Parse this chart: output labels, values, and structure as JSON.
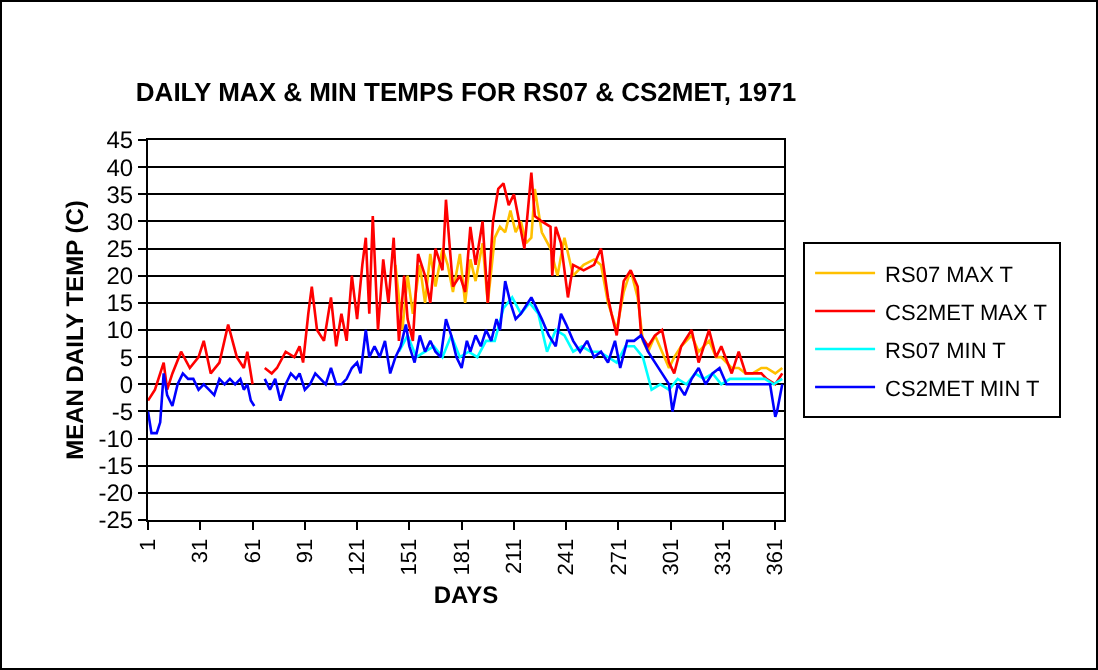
{
  "chart_data": {
    "type": "line",
    "title": "DAILY MAX & MIN TEMPS FOR RS07 & CS2MET, 1971",
    "xlabel": "DAYS",
    "ylabel": "MEAN DAILY TEMP (C)",
    "xlim": [
      1,
      366
    ],
    "xticks": [
      1,
      31,
      61,
      91,
      121,
      151,
      181,
      211,
      241,
      271,
      301,
      331,
      361
    ],
    "ylim": [
      -25,
      45
    ],
    "yticks": [
      -25,
      -20,
      -15,
      -10,
      -5,
      0,
      5,
      10,
      15,
      20,
      25,
      30,
      35,
      40,
      45
    ],
    "grid": "y",
    "legend": "right",
    "marker": "none",
    "line_style": "solid",
    "series": [
      {
        "name": "RS07 MAX T",
        "color": "#ffc000",
        "x": [
          143,
          147,
          150,
          153,
          157,
          160,
          163,
          166,
          170,
          173,
          176,
          180,
          183,
          186,
          189,
          193,
          196,
          200,
          203,
          206,
          209,
          212,
          215,
          218,
          221,
          223,
          227,
          232,
          236,
          240,
          245,
          251,
          257,
          261,
          265,
          270,
          274,
          278,
          282,
          285,
          288,
          292,
          296,
          300,
          303,
          307,
          313,
          317,
          323,
          327,
          330,
          336,
          340,
          344,
          348,
          353,
          356,
          361,
          365
        ],
        "values": [
          22,
          10,
          20,
          13,
          22,
          15,
          24,
          18,
          25,
          22,
          17,
          24,
          15,
          23,
          19,
          26,
          15,
          27,
          29,
          28,
          32,
          28,
          30,
          26,
          27,
          36,
          28,
          25,
          20,
          27,
          20,
          22,
          23,
          22,
          15,
          10,
          17,
          21,
          16,
          8,
          6,
          9,
          6,
          3,
          5,
          7,
          9,
          6,
          8,
          5,
          5,
          3,
          3,
          2,
          2,
          3,
          3,
          2,
          3
        ]
      },
      {
        "name": "CS2MET MAX T",
        "color": "#ff0000",
        "x": [
          1,
          5,
          10,
          12,
          15,
          20,
          25,
          30,
          33,
          37,
          42,
          47,
          52,
          56,
          58,
          61,
          64,
          68,
          72,
          75,
          80,
          85,
          88,
          90,
          93,
          95,
          98,
          102,
          106,
          109,
          112,
          115,
          118,
          121,
          124,
          126,
          128,
          130,
          133,
          136,
          139,
          142,
          145,
          148,
          150,
          153,
          156,
          160,
          163,
          166,
          170,
          172,
          176,
          180,
          183,
          186,
          189,
          193,
          196,
          199,
          202,
          205,
          208,
          211,
          214,
          217,
          221,
          223,
          227,
          232,
          233,
          235,
          238,
          242,
          245,
          251,
          257,
          261,
          265,
          267,
          270,
          274,
          278,
          282,
          284,
          288,
          292,
          296,
          300,
          303,
          307,
          313,
          317,
          323,
          327,
          330,
          336,
          340,
          344,
          348,
          353,
          356,
          361,
          365
        ],
        "values": [
          -3,
          -1,
          4,
          -1,
          2,
          6,
          3,
          5,
          8,
          2,
          4,
          11,
          5,
          3,
          6,
          0,
          null,
          3,
          2,
          3,
          6,
          5,
          7,
          4,
          13,
          18,
          10,
          8,
          16,
          7,
          13,
          8,
          20,
          12,
          22,
          27,
          13,
          31,
          10,
          23,
          15,
          27,
          8,
          20,
          12,
          8,
          24,
          20,
          15,
          25,
          21,
          34,
          18,
          20,
          17,
          29,
          22,
          30,
          15,
          30,
          36,
          37,
          33,
          35,
          30,
          25,
          39,
          31,
          30,
          29,
          20,
          29,
          26,
          16,
          22,
          21,
          22,
          25,
          16,
          13,
          9,
          19,
          21,
          18,
          9,
          7,
          9,
          10,
          4,
          2,
          7,
          10,
          4,
          10,
          5,
          7,
          2,
          6,
          2,
          2,
          2,
          1,
          0,
          2
        ]
      },
      {
        "name": "RS07 MIN T",
        "color": "#00ffff",
        "x": [
          145,
          150,
          155,
          160,
          165,
          170,
          175,
          180,
          185,
          190,
          195,
          200,
          205,
          210,
          215,
          220,
          225,
          230,
          235,
          240,
          245,
          250,
          255,
          260,
          265,
          270,
          275,
          280,
          285,
          290,
          295,
          300,
          305,
          310,
          315,
          320,
          325,
          330,
          335,
          340,
          345,
          350,
          355,
          360,
          365
        ],
        "values": [
          6,
          9,
          5,
          6,
          7,
          5,
          9,
          5,
          6,
          5,
          8,
          8,
          14,
          16,
          13,
          15,
          13,
          6,
          10,
          9,
          6,
          7,
          6,
          6,
          5,
          4,
          7,
          7,
          5,
          -1,
          0,
          -1,
          1,
          0,
          2,
          1,
          2,
          0,
          1,
          1,
          1,
          1,
          1,
          0,
          1
        ]
      },
      {
        "name": "CS2MET MIN T",
        "color": "#0000ff",
        "x": [
          1,
          3,
          6,
          8,
          10,
          12,
          15,
          18,
          21,
          24,
          27,
          30,
          33,
          36,
          39,
          42,
          45,
          48,
          51,
          54,
          56,
          58,
          60,
          62,
          65,
          68,
          71,
          74,
          77,
          80,
          83,
          86,
          88,
          91,
          94,
          97,
          100,
          103,
          106,
          109,
          112,
          115,
          118,
          121,
          123,
          126,
          128,
          131,
          134,
          137,
          140,
          143,
          146,
          149,
          151,
          154,
          157,
          160,
          163,
          166,
          169,
          172,
          175,
          178,
          181,
          184,
          186,
          189,
          192,
          195,
          198,
          201,
          203,
          206,
          209,
          212,
          215,
          221,
          227,
          231,
          235,
          238,
          241,
          245,
          249,
          253,
          257,
          261,
          265,
          269,
          272,
          276,
          280,
          284,
          288,
          292,
          296,
          300,
          302,
          305,
          309,
          313,
          317,
          321,
          325,
          329,
          333,
          336,
          342,
          348,
          353,
          358,
          361,
          362,
          365
        ],
        "values": [
          -5,
          -9,
          -9,
          -7,
          2,
          -2,
          -4,
          0,
          2,
          1,
          1,
          -1,
          0,
          -1,
          -2,
          1,
          0,
          1,
          0,
          1,
          -1,
          0,
          -3,
          -4,
          null,
          1,
          -1,
          1,
          -3,
          0,
          2,
          1,
          2,
          -1,
          0,
          2,
          1,
          0,
          3,
          0,
          0,
          1,
          3,
          4,
          2,
          10,
          5,
          7,
          5,
          8,
          2,
          5,
          7,
          11,
          7,
          4,
          9,
          6,
          8,
          6,
          5,
          12,
          9,
          5,
          3,
          8,
          6,
          9,
          7,
          10,
          8,
          12,
          10,
          19,
          15,
          12,
          13,
          16,
          12,
          9,
          7,
          13,
          11,
          8,
          6,
          8,
          5,
          6,
          4,
          8,
          3,
          8,
          8,
          9,
          6,
          4,
          2,
          0,
          -5,
          0,
          -2,
          1,
          3,
          0,
          2,
          3,
          0,
          0,
          0,
          0,
          0,
          0,
          -6,
          -5,
          0
        ]
      }
    ]
  }
}
